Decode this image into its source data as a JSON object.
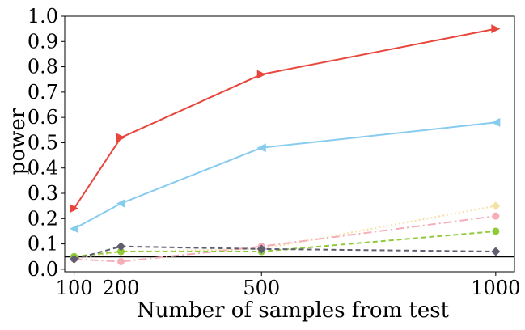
{
  "chart_data": {
    "type": "line",
    "xlabel": "Number of samples from test",
    "ylabel": "power",
    "x": [
      100,
      200,
      500,
      1000
    ],
    "x_ticks": [
      "100",
      "200",
      "500",
      "1000"
    ],
    "y_ticks": [
      "0.0",
      "0.1",
      "0.2",
      "0.3",
      "0.4",
      "0.5",
      "0.6",
      "0.7",
      "0.8",
      "0.9",
      "1.0"
    ],
    "xlim": [
      80,
      1040
    ],
    "ylim": [
      -0.01,
      1.0
    ],
    "grid": false,
    "reference_line": {
      "y": 0.05,
      "color": "#000000"
    },
    "series": [
      {
        "values": [
          0.24,
          0.52,
          0.77,
          0.95
        ],
        "color": "#e8453c",
        "style": "solid",
        "marker": "triangle-right"
      },
      {
        "values": [
          0.16,
          0.26,
          0.48,
          0.58
        ],
        "color": "#87cbef",
        "style": "solid",
        "marker": "triangle-left"
      },
      {
        "values": [
          0.04,
          0.07,
          0.08,
          0.25
        ],
        "color": "#f5e0a6",
        "style": "dotted",
        "marker": "diamond"
      },
      {
        "values": [
          0.04,
          0.03,
          0.09,
          0.21
        ],
        "color": "#f5aeb8",
        "style": "dashdot",
        "marker": "circle"
      },
      {
        "values": [
          0.05,
          0.07,
          0.07,
          0.15
        ],
        "color": "#90c93a",
        "style": "dashed",
        "marker": "circle"
      },
      {
        "values": [
          0.04,
          0.09,
          0.08,
          0.07
        ],
        "color": "#5e5e70",
        "style": "dashed",
        "marker": "diamond"
      }
    ]
  }
}
